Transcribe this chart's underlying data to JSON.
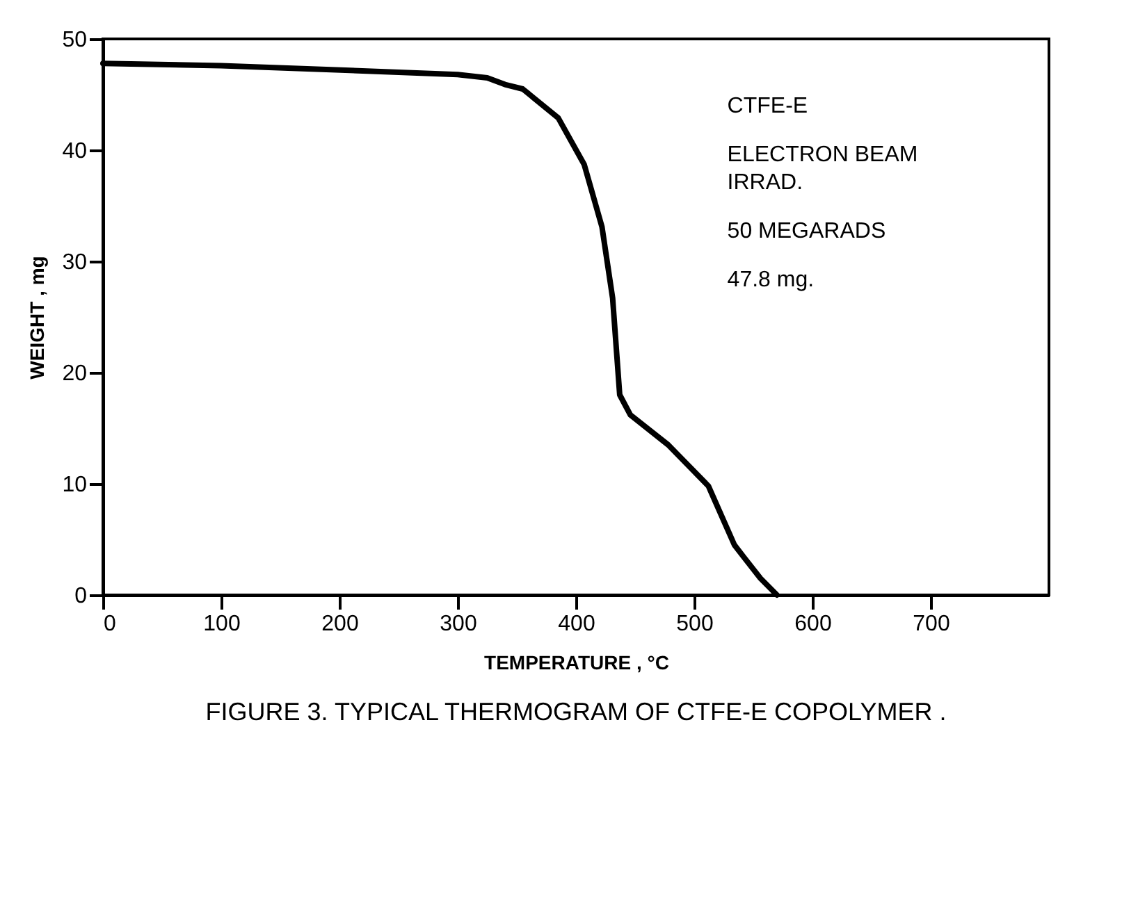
{
  "chart_data": {
    "type": "line",
    "title": "FIGURE 3. TYPICAL THERMOGRAM OF CTFE-E COPOLYMER .",
    "xlabel": "TEMPERATURE , °C",
    "ylabel": "WEIGHT , mg",
    "x": [
      0,
      100,
      201,
      300,
      325,
      340,
      355,
      385,
      407,
      422,
      431,
      437,
      446,
      478,
      512,
      534,
      542,
      556,
      570
    ],
    "series": [
      {
        "color": "#000000",
        "values": [
          47.8,
          47.6,
          47.2,
          46.8,
          46.5,
          45.9,
          45.5,
          42.9,
          38.7,
          33.1,
          26.7,
          18.0,
          16.2,
          13.5,
          9.8,
          4.5,
          3.4,
          1.5,
          0
        ]
      }
    ],
    "xlim": [
      0,
      800
    ],
    "xticks": [
      0,
      100,
      200,
      300,
      400,
      500,
      600,
      700
    ],
    "ylim": [
      0,
      50
    ],
    "yticks": [
      0,
      10,
      20,
      30,
      40,
      50
    ],
    "grid": false,
    "marker": "none",
    "line_style": "solid",
    "annotations": [
      "CTFE-E",
      "ELECTRON BEAM\nIRRAD.",
      "50 MEGARADS",
      "47.8 mg."
    ]
  }
}
